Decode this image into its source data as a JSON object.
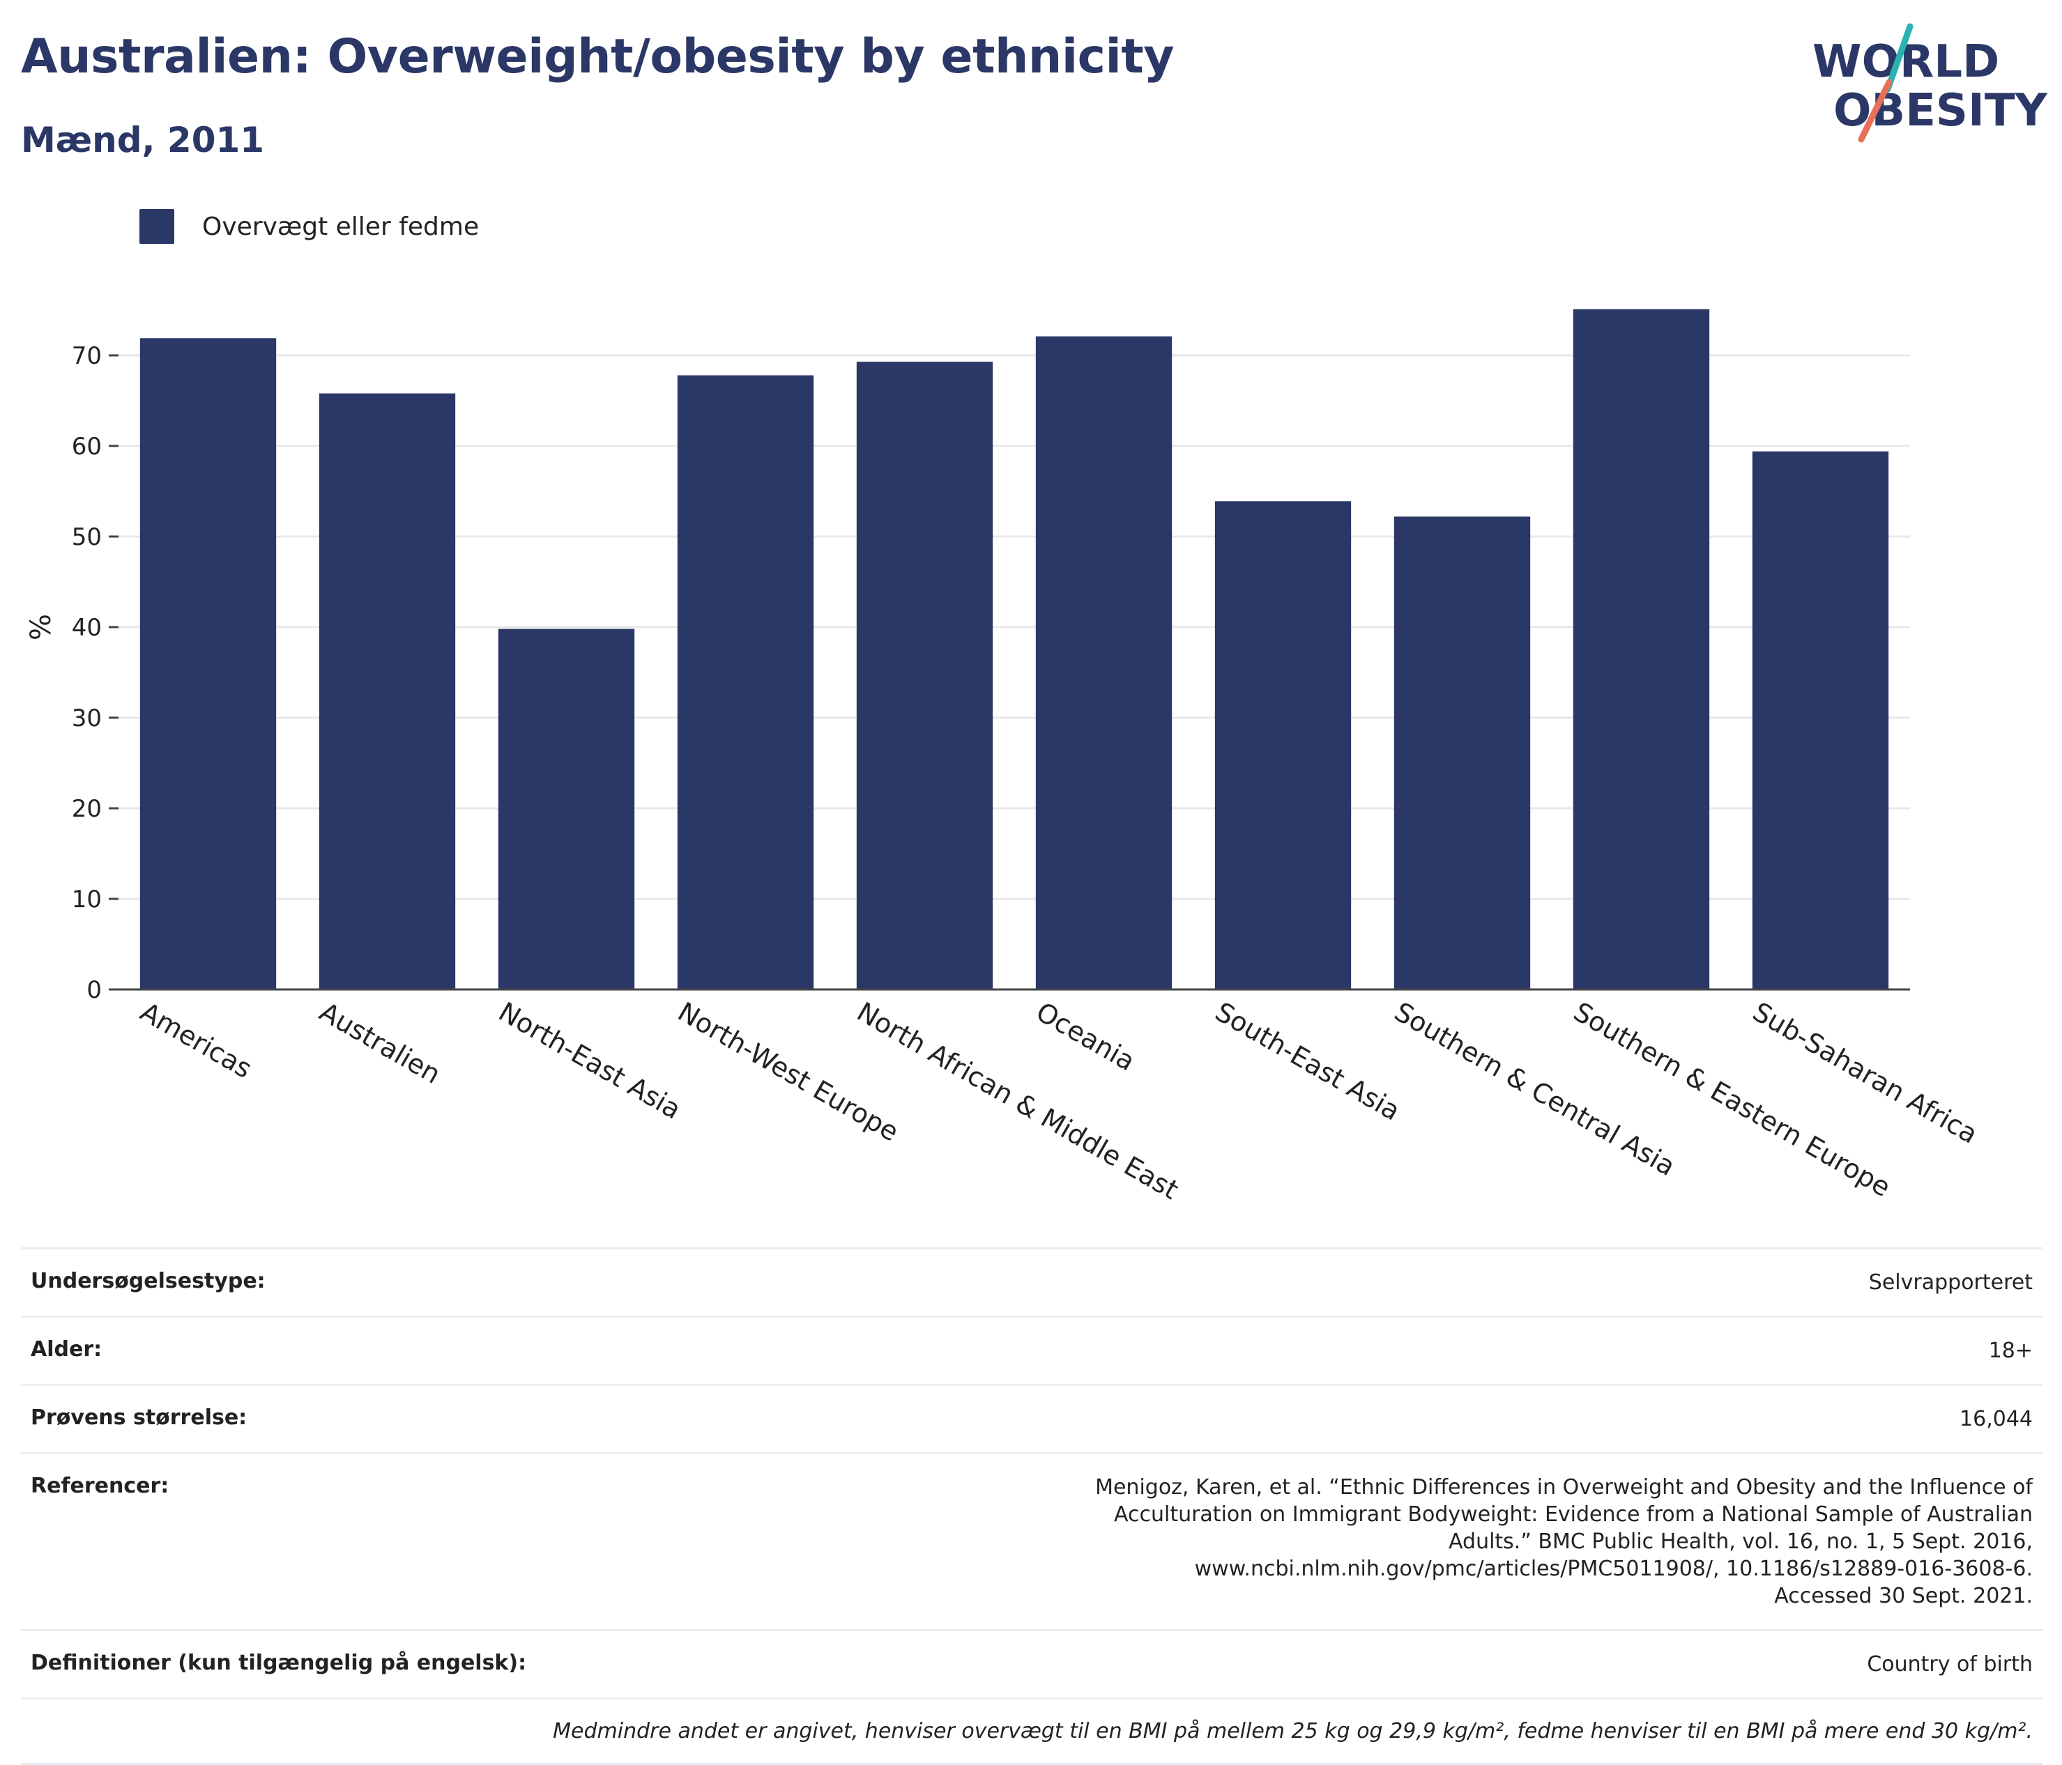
{
  "title": "Australien: Overweight/obesity by ethnicity",
  "subtitle": "Mænd, 2011",
  "logo": {
    "line1": "WORLD",
    "line2": "OBESITY",
    "name": "world-obesity-logo"
  },
  "colors": {
    "bar": "#2b3766",
    "text_dark": "#2b3766",
    "grid": "#e8e8e8",
    "axis": "#444444",
    "logo_teal": "#2bb3b1",
    "logo_coral": "#e8705b"
  },
  "chart_data": {
    "type": "bar",
    "categories": [
      "Americas",
      "Australien",
      "North-East Asia",
      "North-West Europe",
      "North African & Middle East",
      "Oceania",
      "South-East Asia",
      "Southern & Central Asia",
      "Southern & Eastern Europe",
      "Sub-Saharan Africa"
    ],
    "series": [
      {
        "name": "Overvægt eller fedme",
        "values": [
          71.9,
          65.8,
          39.8,
          67.8,
          69.3,
          72.1,
          53.9,
          52.2,
          75.1,
          59.4
        ]
      }
    ],
    "ylabel": "%",
    "xlabel": "",
    "ylim": [
      0,
      80
    ],
    "yticks": [
      0,
      10,
      20,
      30,
      40,
      50,
      60,
      70
    ],
    "grid": true,
    "legend_position": "top-left"
  },
  "info_table": [
    {
      "label": "Undersøgelsestype:",
      "value": "Selvrapporteret"
    },
    {
      "label": "Alder:",
      "value": "18+"
    },
    {
      "label": "Prøvens størrelse:",
      "value": "16,044"
    },
    {
      "label": "Referencer:",
      "value": "Menigoz, Karen, et al. “Ethnic Differences in Overweight and Obesity and the Influence of Acculturation on Immigrant Bodyweight: Evidence from a National Sample of Australian Adults.” BMC Public Health, vol. 16, no. 1, 5 Sept. 2016, www.ncbi.nlm.nih.gov/pmc/articles/PMC5011908/, 10.1186/s12889-016-3608-6. Accessed 30 Sept. 2021."
    },
    {
      "label": "Definitioner (kun tilgængelig på engelsk):",
      "value": "Country of birth"
    }
  ],
  "footnote": "Medmindre andet er angivet, henviser overvægt til en BMI på mellem 25 kg og 29,9 kg/m², fedme henviser til en BMI på mere end 30 kg/m²."
}
